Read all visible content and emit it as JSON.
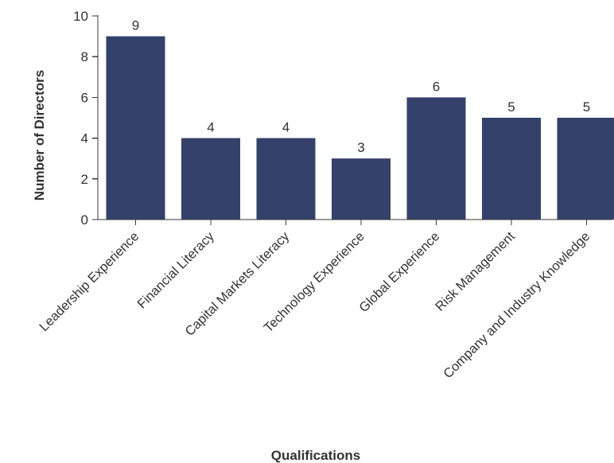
{
  "chart_data": {
    "type": "bar",
    "xlabel": "Qualifications",
    "ylabel": "Number of Directors",
    "ylim": [
      0,
      10
    ],
    "yticks": [
      0,
      2,
      4,
      6,
      8,
      10
    ],
    "categories": [
      "Leadership Experience",
      "Financial Literacy",
      "Capital Markets Literacy",
      "Technology Experience",
      "Global Experience",
      "Risk Management",
      "Company and Industry Knowledge"
    ],
    "values": [
      9,
      4,
      4,
      3,
      6,
      5,
      5
    ],
    "bar_color": "#33416b",
    "grid": false,
    "data_labels": true
  }
}
